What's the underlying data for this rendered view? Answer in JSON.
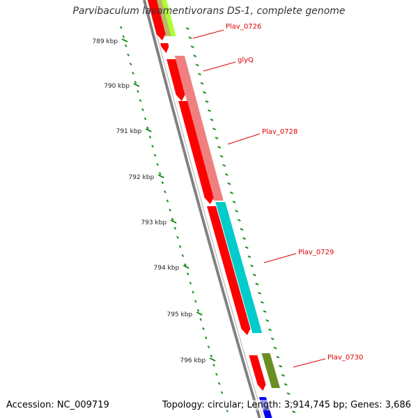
{
  "title": "Parvibaculum lavamentivorans DS-1, complete genome",
  "accession": "Accession: NC_009719",
  "topology": "Topology: circular; Length: 3,914,745 bp; Genes: 3,686",
  "ruler_labels": [
    "789 kbp",
    "790 kbp",
    "791 kbp",
    "792 kbp",
    "793 kbp",
    "794 kbp",
    "795 kbp",
    "796 kbp"
  ],
  "gene_labels": [
    "Plav_0726",
    "glyQ",
    "Plav_0728",
    "Plav_0729",
    "Plav_0730"
  ],
  "colors": {
    "background": "#ffffff",
    "backbone": "#808080",
    "ruler": "#1a8c1a",
    "gene_forward": "#ff0000",
    "label": "#dd0000",
    "glyQ_feature": "#f08080",
    "Plav_0729_feature": "#00cccc",
    "Plav_0730_feature": "#6b8e23",
    "top_feature_green": "#adff2f",
    "top_feature_tan": "#bdb76b",
    "bottom_feature": "#0000ee"
  }
}
